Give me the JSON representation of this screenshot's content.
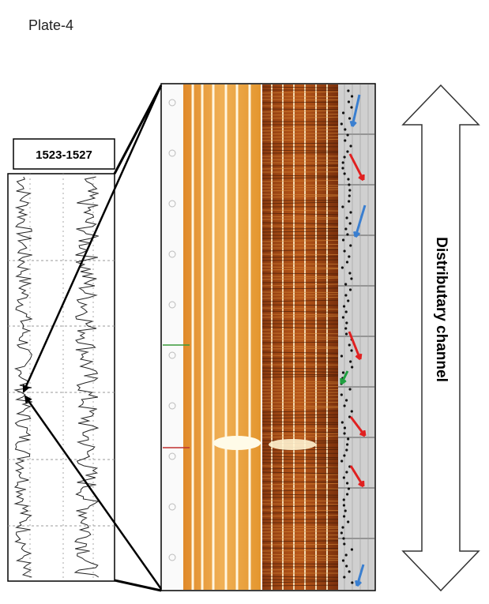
{
  "title": "Plate-4",
  "depth_label": "1523-1527",
  "interpretation": "Distributary channel"
}
